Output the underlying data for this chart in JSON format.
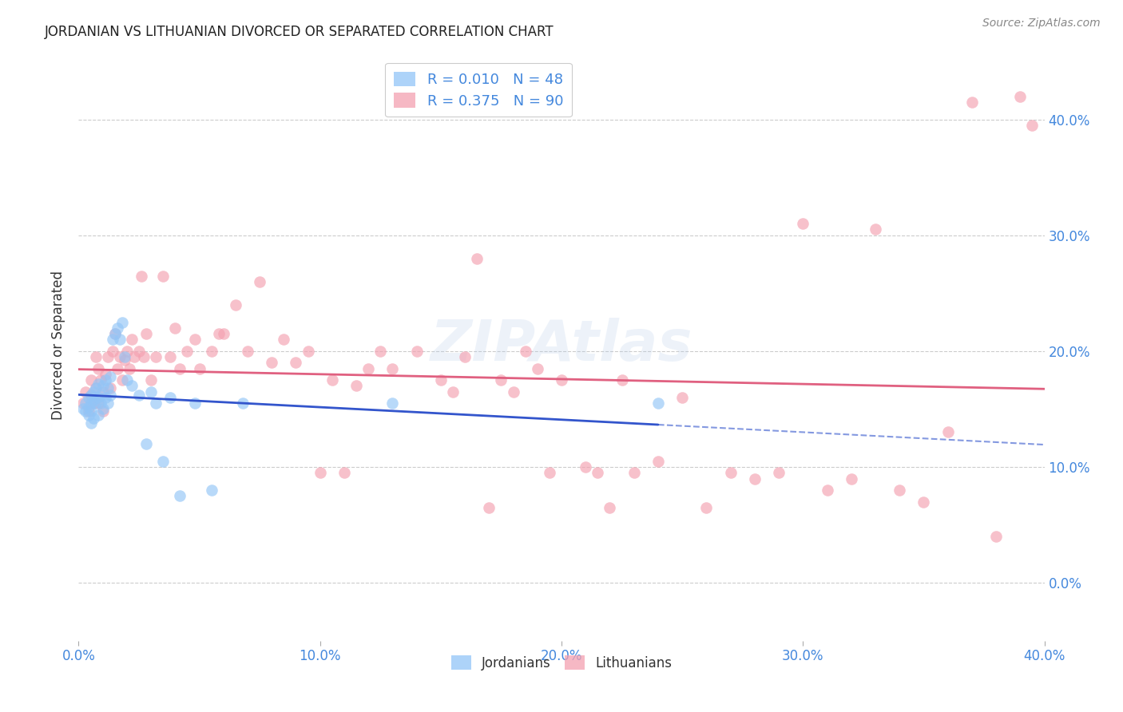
{
  "title": "JORDANIAN VS LITHUANIAN DIVORCED OR SEPARATED CORRELATION CHART",
  "source": "Source: ZipAtlas.com",
  "ylabel": "Divorced or Separated",
  "xlim": [
    0.0,
    0.4
  ],
  "ylim": [
    -0.05,
    0.46
  ],
  "yticks": [
    0.0,
    0.1,
    0.2,
    0.3,
    0.4
  ],
  "xticks": [
    0.0,
    0.1,
    0.2,
    0.3,
    0.4
  ],
  "xtick_labels": [
    "0.0%",
    "10.0%",
    "20.0%",
    "30.0%",
    "40.0%"
  ],
  "ytick_labels_right": [
    "0.0%",
    "10.0%",
    "20.0%",
    "30.0%",
    "40.0%"
  ],
  "legend_jordanian_R": "R = 0.010",
  "legend_jordanian_N": "N = 48",
  "legend_lithuanian_R": "R = 0.375",
  "legend_lithuanian_N": "N = 90",
  "jordanian_color": "#92c5f7",
  "lithuanian_color": "#f4a0b0",
  "trend_jordanian_color": "#3355cc",
  "trend_lithuanian_color": "#e06080",
  "watermark": "ZIPAtlas",
  "jordanian_x": [
    0.002,
    0.003,
    0.003,
    0.004,
    0.004,
    0.004,
    0.005,
    0.005,
    0.005,
    0.005,
    0.006,
    0.006,
    0.006,
    0.007,
    0.007,
    0.008,
    0.008,
    0.008,
    0.009,
    0.009,
    0.01,
    0.01,
    0.011,
    0.011,
    0.012,
    0.012,
    0.013,
    0.013,
    0.014,
    0.015,
    0.016,
    0.017,
    0.018,
    0.019,
    0.02,
    0.022,
    0.025,
    0.028,
    0.03,
    0.032,
    0.035,
    0.038,
    0.042,
    0.048,
    0.055,
    0.068,
    0.13,
    0.24
  ],
  "jordanian_y": [
    0.15,
    0.155,
    0.148,
    0.152,
    0.145,
    0.16,
    0.155,
    0.148,
    0.162,
    0.138,
    0.158,
    0.165,
    0.142,
    0.155,
    0.168,
    0.16,
    0.145,
    0.172,
    0.155,
    0.162,
    0.17,
    0.15,
    0.175,
    0.16,
    0.168,
    0.155,
    0.178,
    0.162,
    0.21,
    0.215,
    0.22,
    0.21,
    0.225,
    0.195,
    0.175,
    0.17,
    0.162,
    0.12,
    0.165,
    0.155,
    0.105,
    0.16,
    0.075,
    0.155,
    0.08,
    0.155,
    0.155,
    0.155
  ],
  "lithuanian_x": [
    0.002,
    0.003,
    0.004,
    0.005,
    0.005,
    0.006,
    0.007,
    0.007,
    0.008,
    0.008,
    0.009,
    0.01,
    0.01,
    0.011,
    0.012,
    0.013,
    0.014,
    0.015,
    0.016,
    0.017,
    0.018,
    0.019,
    0.02,
    0.021,
    0.022,
    0.023,
    0.025,
    0.026,
    0.027,
    0.028,
    0.03,
    0.032,
    0.035,
    0.038,
    0.04,
    0.042,
    0.045,
    0.048,
    0.05,
    0.055,
    0.058,
    0.06,
    0.065,
    0.07,
    0.075,
    0.08,
    0.085,
    0.09,
    0.095,
    0.1,
    0.105,
    0.11,
    0.115,
    0.12,
    0.125,
    0.13,
    0.14,
    0.15,
    0.155,
    0.16,
    0.165,
    0.17,
    0.175,
    0.18,
    0.185,
    0.19,
    0.195,
    0.2,
    0.21,
    0.215,
    0.22,
    0.225,
    0.23,
    0.24,
    0.25,
    0.26,
    0.27,
    0.28,
    0.29,
    0.3,
    0.31,
    0.32,
    0.33,
    0.34,
    0.35,
    0.36,
    0.37,
    0.38,
    0.39,
    0.395
  ],
  "lithuanian_y": [
    0.155,
    0.165,
    0.148,
    0.162,
    0.175,
    0.155,
    0.168,
    0.195,
    0.155,
    0.185,
    0.175,
    0.165,
    0.148,
    0.18,
    0.195,
    0.168,
    0.2,
    0.215,
    0.185,
    0.195,
    0.175,
    0.192,
    0.2,
    0.185,
    0.21,
    0.195,
    0.2,
    0.265,
    0.195,
    0.215,
    0.175,
    0.195,
    0.265,
    0.195,
    0.22,
    0.185,
    0.2,
    0.21,
    0.185,
    0.2,
    0.215,
    0.215,
    0.24,
    0.2,
    0.26,
    0.19,
    0.21,
    0.19,
    0.2,
    0.095,
    0.175,
    0.095,
    0.17,
    0.185,
    0.2,
    0.185,
    0.2,
    0.175,
    0.165,
    0.195,
    0.28,
    0.065,
    0.175,
    0.165,
    0.2,
    0.185,
    0.095,
    0.175,
    0.1,
    0.095,
    0.065,
    0.175,
    0.095,
    0.105,
    0.16,
    0.065,
    0.095,
    0.09,
    0.095,
    0.31,
    0.08,
    0.09,
    0.305,
    0.08,
    0.07,
    0.13,
    0.415,
    0.04,
    0.42,
    0.395
  ]
}
